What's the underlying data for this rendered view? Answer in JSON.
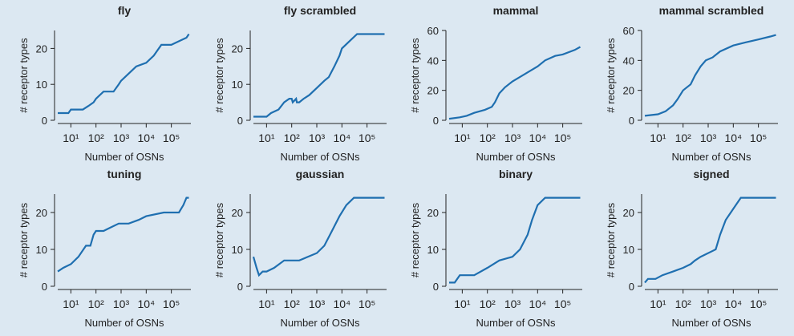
{
  "chart_data": [
    {
      "type": "line",
      "title": "fly",
      "xlabel": "Number of OSNs",
      "ylabel": "# receptor types",
      "xscale": "log",
      "color": "#1f6fb0",
      "x": [
        3,
        8,
        10,
        30,
        50,
        80,
        100,
        200,
        500,
        800,
        1000,
        2000,
        4000,
        10000,
        20000,
        40000,
        100000,
        200000,
        400000,
        500000
      ],
      "values": [
        2,
        2,
        3,
        3,
        4,
        5,
        6,
        8,
        8,
        10,
        11,
        13,
        15,
        16,
        18,
        21,
        21,
        22,
        23,
        24
      ],
      "xlim": [
        3,
        600000
      ],
      "ylim": [
        0,
        25
      ],
      "yticks": [
        0,
        10,
        20
      ],
      "xticks": [
        {
          "value": 10,
          "label": "10¹"
        },
        {
          "value": 100,
          "label": "10²"
        },
        {
          "value": 1000,
          "label": "10³"
        },
        {
          "value": 10000,
          "label": "10⁴"
        },
        {
          "value": 100000,
          "label": "10⁵"
        }
      ]
    },
    {
      "type": "line",
      "title": "fly scrambled",
      "xlabel": "Number of OSNs",
      "ylabel": "# receptor types",
      "xscale": "log",
      "color": "#1f6fb0",
      "x": [
        3,
        10,
        15,
        30,
        50,
        80,
        100,
        110,
        150,
        160,
        200,
        300,
        500,
        1000,
        2000,
        3000,
        5000,
        8000,
        10000,
        20000,
        40000,
        500000
      ],
      "values": [
        1,
        1,
        2,
        3,
        5,
        6,
        6,
        5,
        6,
        5,
        5,
        6,
        7,
        9,
        11,
        12,
        15,
        18,
        20,
        22,
        24,
        24
      ],
      "xlim": [
        3,
        600000
      ],
      "ylim": [
        0,
        25
      ],
      "yticks": [
        0,
        10,
        20
      ],
      "xticks": [
        {
          "value": 10,
          "label": "10¹"
        },
        {
          "value": 100,
          "label": "10²"
        },
        {
          "value": 1000,
          "label": "10³"
        },
        {
          "value": 10000,
          "label": "10⁴"
        },
        {
          "value": 100000,
          "label": "10⁵"
        }
      ]
    },
    {
      "type": "line",
      "title": "mammal",
      "xlabel": "Number of OSNs",
      "ylabel": "# receptor types",
      "xscale": "log",
      "color": "#1f6fb0",
      "x": [
        3,
        8,
        15,
        30,
        80,
        150,
        200,
        300,
        500,
        1000,
        2000,
        5000,
        10000,
        20000,
        50000,
        100000,
        300000,
        500000
      ],
      "values": [
        1,
        2,
        3,
        5,
        7,
        9,
        12,
        18,
        22,
        26,
        29,
        33,
        36,
        40,
        43,
        44,
        47,
        49
      ],
      "xlim": [
        3,
        600000
      ],
      "ylim": [
        0,
        60
      ],
      "yticks": [
        0,
        20,
        40,
        60
      ],
      "xticks": [
        {
          "value": 10,
          "label": "10¹"
        },
        {
          "value": 100,
          "label": "10²"
        },
        {
          "value": 1000,
          "label": "10³"
        },
        {
          "value": 10000,
          "label": "10⁴"
        },
        {
          "value": 100000,
          "label": "10⁵"
        }
      ]
    },
    {
      "type": "line",
      "title": "mammal scrambled",
      "xlabel": "Number of OSNs",
      "ylabel": "# receptor types",
      "xscale": "log",
      "color": "#1f6fb0",
      "x": [
        3,
        10,
        20,
        40,
        60,
        100,
        200,
        300,
        500,
        800,
        1500,
        3000,
        10000,
        30000,
        100000,
        300000,
        500000
      ],
      "values": [
        3,
        4,
        6,
        10,
        14,
        20,
        24,
        30,
        36,
        40,
        42,
        46,
        50,
        52,
        54,
        56,
        57
      ],
      "xlim": [
        3,
        600000
      ],
      "ylim": [
        0,
        60
      ],
      "yticks": [
        0,
        20,
        40,
        60
      ],
      "xticks": [
        {
          "value": 10,
          "label": "10¹"
        },
        {
          "value": 100,
          "label": "10²"
        },
        {
          "value": 1000,
          "label": "10³"
        },
        {
          "value": 10000,
          "label": "10⁴"
        },
        {
          "value": 100000,
          "label": "10⁵"
        }
      ]
    },
    {
      "type": "line",
      "title": "tuning",
      "xlabel": "Number of OSNs",
      "ylabel": "# receptor types",
      "xscale": "log",
      "color": "#1f6fb0",
      "x": [
        3,
        5,
        10,
        20,
        40,
        60,
        80,
        100,
        200,
        400,
        800,
        2000,
        5000,
        10000,
        50000,
        200000,
        300000,
        400000,
        500000
      ],
      "values": [
        4,
        5,
        6,
        8,
        11,
        11,
        14,
        15,
        15,
        16,
        17,
        17,
        18,
        19,
        20,
        20,
        22,
        24,
        24
      ],
      "xlim": [
        3,
        600000
      ],
      "ylim": [
        0,
        25
      ],
      "yticks": [
        0,
        10,
        20
      ],
      "xticks": [
        {
          "value": 10,
          "label": "10¹"
        },
        {
          "value": 100,
          "label": "10²"
        },
        {
          "value": 1000,
          "label": "10³"
        },
        {
          "value": 10000,
          "label": "10⁴"
        },
        {
          "value": 100000,
          "label": "10⁵"
        }
      ]
    },
    {
      "type": "line",
      "title": "gaussian",
      "xlabel": "Number of OSNs",
      "ylabel": "# receptor types",
      "xscale": "log",
      "color": "#1f6fb0",
      "x": [
        3,
        4,
        5,
        7,
        10,
        20,
        50,
        200,
        1000,
        2000,
        4000,
        8000,
        15000,
        30000,
        500000
      ],
      "values": [
        8,
        5,
        3,
        4,
        4,
        5,
        7,
        7,
        9,
        11,
        15,
        19,
        22,
        24,
        24
      ],
      "xlim": [
        3,
        600000
      ],
      "ylim": [
        0,
        25
      ],
      "yticks": [
        0,
        10,
        20
      ],
      "xticks": [
        {
          "value": 10,
          "label": "10¹"
        },
        {
          "value": 100,
          "label": "10²"
        },
        {
          "value": 1000,
          "label": "10³"
        },
        {
          "value": 10000,
          "label": "10⁴"
        },
        {
          "value": 100000,
          "label": "10⁵"
        }
      ]
    },
    {
      "type": "line",
      "title": "binary",
      "xlabel": "Number of OSNs",
      "ylabel": "# receptor types",
      "xscale": "log",
      "color": "#1f6fb0",
      "x": [
        3,
        5,
        8,
        30,
        100,
        300,
        1000,
        2000,
        4000,
        6000,
        10000,
        20000,
        500000
      ],
      "values": [
        1,
        1,
        3,
        3,
        5,
        7,
        8,
        10,
        14,
        18,
        22,
        24,
        24
      ],
      "xlim": [
        3,
        600000
      ],
      "ylim": [
        0,
        25
      ],
      "yticks": [
        0,
        10,
        20
      ],
      "xticks": [
        {
          "value": 10,
          "label": "10¹"
        },
        {
          "value": 100,
          "label": "10²"
        },
        {
          "value": 1000,
          "label": "10³"
        },
        {
          "value": 10000,
          "label": "10⁴"
        },
        {
          "value": 100000,
          "label": "10⁵"
        }
      ]
    },
    {
      "type": "line",
      "title": "signed",
      "xlabel": "Number of OSNs",
      "ylabel": "# receptor types",
      "xscale": "log",
      "color": "#1f6fb0",
      "x": [
        3,
        4,
        8,
        15,
        40,
        100,
        200,
        300,
        500,
        2000,
        3000,
        5000,
        10000,
        20000,
        500000
      ],
      "values": [
        1,
        2,
        2,
        3,
        4,
        5,
        6,
        7,
        8,
        10,
        14,
        18,
        21,
        24,
        24
      ],
      "xlim": [
        3,
        600000
      ],
      "ylim": [
        0,
        25
      ],
      "yticks": [
        0,
        10,
        20
      ],
      "xticks": [
        {
          "value": 10,
          "label": "10¹"
        },
        {
          "value": 100,
          "label": "10²"
        },
        {
          "value": 1000,
          "label": "10³"
        },
        {
          "value": 10000,
          "label": "10⁴"
        },
        {
          "value": 100000,
          "label": "10⁵"
        }
      ]
    }
  ]
}
